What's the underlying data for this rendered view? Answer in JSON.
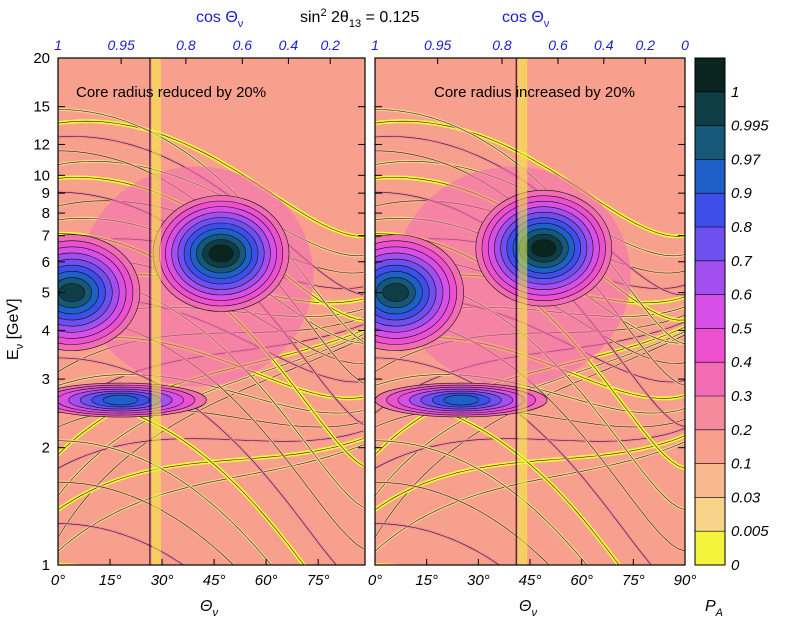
{
  "chart_data": {
    "type": "heatmap",
    "title": "sin² 2θ₁₃ = 0.125",
    "title_parts": {
      "a": "sin",
      "b": "2",
      "c": " 2θ",
      "d": "13",
      "e": " = 0.125"
    },
    "x_label": {
      "base": "Θ",
      "sub": "ν"
    },
    "x2_label": {
      "base": "cos Θ",
      "sub": "ν"
    },
    "y_label": {
      "base": "E",
      "sub": "ν",
      "unit": " [GeV]"
    },
    "colorbar_label": {
      "base": "P",
      "sub": "A"
    },
    "y_scale": "log",
    "y_range": [
      1,
      20
    ],
    "y_ticks": [
      "1",
      "2",
      "3",
      "4",
      "5",
      "6",
      "7",
      "8",
      "9",
      "10",
      "12",
      "15",
      "20"
    ],
    "x_range": [
      0,
      90
    ],
    "panels": [
      {
        "annotation": "Core radius reduced by 20%",
        "x_ticks": [
          "0°",
          "15°",
          "30°",
          "45°",
          "60°",
          "75°"
        ],
        "x2_ticks": [
          "1",
          "0.95",
          "0.8",
          "0.6",
          "0.4",
          "0.2"
        ],
        "core_boundary_deg": 26.5,
        "blobs": [
          {
            "theta": 47,
            "energy": 6.3,
            "p": 0.995
          },
          {
            "theta": 4,
            "energy": 5.0,
            "p": 0.97
          },
          {
            "theta": 18,
            "energy": 2.65,
            "p": 0.8
          }
        ]
      },
      {
        "annotation": "Core radius increased by 20%",
        "x_ticks": [
          "0°",
          "15°",
          "30°",
          "45°",
          "60°",
          "75°",
          "90°"
        ],
        "x2_ticks": [
          "1",
          "0.95",
          "0.8",
          "0.6",
          "0.4",
          "0.2",
          "0"
        ],
        "core_boundary_deg": 41,
        "blobs": [
          {
            "theta": 49,
            "energy": 6.5,
            "p": 0.995
          },
          {
            "theta": 6,
            "energy": 5.0,
            "p": 0.97
          },
          {
            "theta": 25,
            "energy": 2.65,
            "p": 0.8
          }
        ]
      }
    ],
    "colorbar": {
      "levels": [
        "0",
        "0.005",
        "0.03",
        "0.1",
        "0.2",
        "0.3",
        "0.4",
        "0.5",
        "0.6",
        "0.7",
        "0.8",
        "0.9",
        "0.97",
        "0.995",
        "1"
      ],
      "colors": [
        "#f4f43c",
        "#f7d48a",
        "#f8b88e",
        "#f8a08e",
        "#f58a9c",
        "#f26cb4",
        "#ec4fd0",
        "#d84fe8",
        "#a34ff0",
        "#6e4ff0",
        "#3d4fe8",
        "#1f5fc8",
        "#155878",
        "#0f3d45",
        "#0a2420"
      ]
    }
  }
}
